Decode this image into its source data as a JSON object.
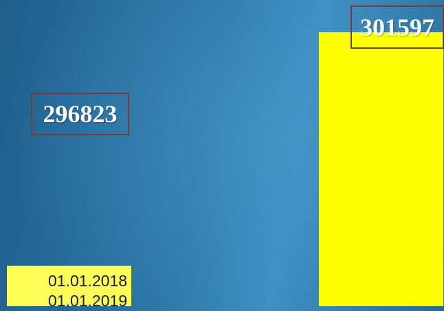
{
  "chart_data": {
    "type": "bar",
    "categories": [
      "01.01.2018",
      "01.01.2019"
    ],
    "values": [
      296823,
      301597
    ],
    "data_labels": [
      "296823",
      "301597"
    ],
    "bar_colors": [
      "#ffff57",
      "#ffff00"
    ],
    "legend": [
      "01.01.2018",
      "01.01.2019"
    ],
    "legend_position": "bottom-left",
    "grid": false
  }
}
